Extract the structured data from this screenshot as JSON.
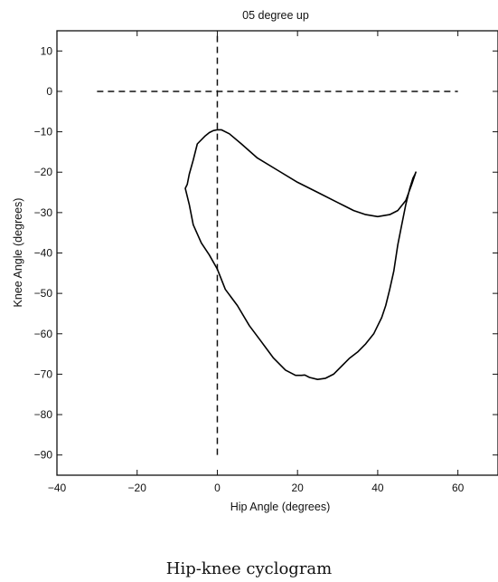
{
  "caption": "Hip-knee cyclogram",
  "chart_data": {
    "type": "line",
    "title": "05 degree up",
    "xlabel": "Hip Angle (degrees)",
    "ylabel": "Knee Angle (degrees)",
    "xlim": [
      -40,
      70
    ],
    "ylim": [
      -95,
      15
    ],
    "xticks": [
      -40,
      -20,
      0,
      20,
      40,
      60
    ],
    "yticks": [
      10,
      0,
      -10,
      -20,
      -30,
      -40,
      -50,
      -60,
      -70,
      -80,
      -90
    ],
    "xtick_labels": [
      "−40",
      "−20",
      "0",
      "20",
      "40",
      "60"
    ],
    "ytick_labels": [
      "10",
      "0",
      "−10",
      "−20",
      "−30",
      "−40",
      "−50",
      "−60",
      "−70",
      "−80",
      "−90"
    ],
    "grid": false,
    "reference_lines": [
      {
        "orientation": "horizontal",
        "y": 0,
        "x_range": [
          -30,
          60
        ],
        "style": "dashed"
      },
      {
        "orientation": "vertical",
        "x": 0,
        "y_range": [
          -90,
          15
        ],
        "style": "dashed"
      }
    ],
    "series": [
      {
        "style": "solid",
        "color": "#000000",
        "x": [
          49.5,
          48.5,
          47,
          45,
          43,
          40,
          37,
          34,
          30,
          25,
          20,
          15,
          10,
          6,
          3,
          1,
          0,
          -1,
          -2,
          -3,
          -5,
          -6,
          -7,
          -7.5,
          -8,
          -7,
          -6,
          -4,
          -2,
          0,
          2,
          5,
          8,
          11,
          14,
          17,
          19.5,
          21,
          21.8,
          23,
          25,
          27,
          29,
          31,
          33,
          35,
          37,
          39,
          40,
          41,
          42,
          43,
          44,
          45,
          46,
          47,
          48,
          48.8,
          49.3,
          49.5
        ],
        "y": [
          -20,
          -23,
          -27,
          -29.5,
          -30.5,
          -31,
          -30.5,
          -29.5,
          -27.5,
          -25,
          -22.5,
          -19.5,
          -16.5,
          -13,
          -10.5,
          -9.5,
          -9.5,
          -9.7,
          -10.2,
          -11,
          -13,
          -17,
          -20.5,
          -23,
          -24,
          -28,
          -33,
          -37.5,
          -40.5,
          -44,
          -49,
          -53,
          -58,
          -62,
          -66,
          -69,
          -70.3,
          -70.3,
          -70.2,
          -70.8,
          -71.3,
          -71,
          -70,
          -68,
          -66,
          -64.5,
          -62.5,
          -60,
          -58,
          -56,
          -53,
          -49,
          -44.5,
          -38,
          -33,
          -28,
          -24,
          -21.5,
          -20.5,
          -20
        ]
      }
    ]
  }
}
